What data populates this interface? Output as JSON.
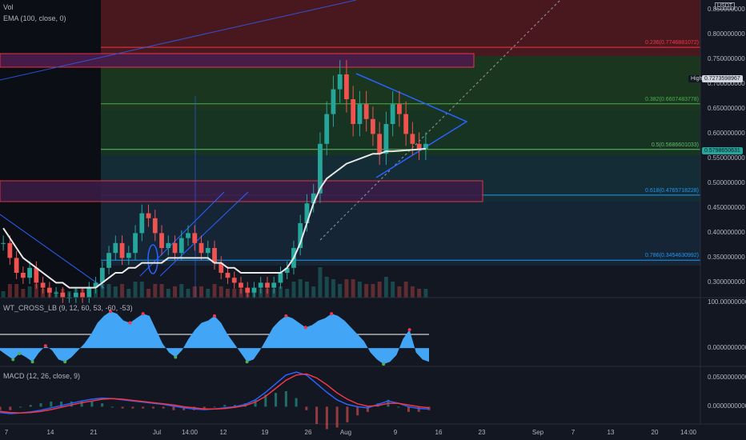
{
  "chart_data": [
    {
      "type": "candlestick",
      "pane": "price",
      "title": "",
      "indicators": [
        "Vol",
        "EMA (100, close, 0)"
      ],
      "y_axis_unit": "USDT",
      "ylim": [
        0.27,
        0.87
      ],
      "yticks": [
        "0.850000000",
        "0.800000000",
        "0.750000000",
        "0.700000000",
        "0.650000000",
        "0.600000000",
        "0.550000000",
        "0.500000000",
        "0.450000000",
        "0.400000000",
        "0.350000000",
        "0.300000000"
      ],
      "ytick_values": [
        0.85,
        0.8,
        0.75,
        0.7,
        0.65,
        0.6,
        0.55,
        0.5,
        0.45,
        0.4,
        0.35,
        0.3
      ],
      "xticks": [
        "7",
        "14",
        "21",
        "Jul",
        "14:00",
        "12",
        "19",
        "26",
        "Aug",
        "9",
        "16",
        "23",
        "Sep",
        "7",
        "13",
        "20",
        "14:00"
      ],
      "price_series": [
        0.38,
        0.35,
        0.32,
        0.31,
        0.33,
        0.3,
        0.29,
        0.28,
        0.28,
        0.27,
        0.27,
        0.28,
        0.27,
        0.29,
        0.3,
        0.33,
        0.36,
        0.38,
        0.35,
        0.36,
        0.4,
        0.44,
        0.43,
        0.4,
        0.37,
        0.38,
        0.36,
        0.39,
        0.4,
        0.38,
        0.36,
        0.37,
        0.34,
        0.32,
        0.31,
        0.3,
        0.29,
        0.28,
        0.29,
        0.3,
        0.29,
        0.3,
        0.32,
        0.33,
        0.37,
        0.42,
        0.46,
        0.48,
        0.58,
        0.64,
        0.69,
        0.72,
        0.67,
        0.62,
        0.66,
        0.63,
        0.6,
        0.56,
        0.62,
        0.66,
        0.64,
        0.6,
        0.58,
        0.57,
        0.58
      ],
      "ema_series": [
        0.41,
        0.39,
        0.37,
        0.35,
        0.34,
        0.33,
        0.32,
        0.31,
        0.3,
        0.3,
        0.29,
        0.29,
        0.29,
        0.29,
        0.29,
        0.3,
        0.31,
        0.32,
        0.32,
        0.33,
        0.33,
        0.34,
        0.34,
        0.34,
        0.34,
        0.35,
        0.35,
        0.35,
        0.35,
        0.35,
        0.35,
        0.35,
        0.34,
        0.34,
        0.33,
        0.33,
        0.32,
        0.32,
        0.32,
        0.32,
        0.32,
        0.32,
        0.32,
        0.33,
        0.35,
        0.38,
        0.42,
        0.46,
        0.49,
        0.51,
        0.52,
        0.53,
        0.54,
        0.545,
        0.55,
        0.555,
        0.56,
        0.56,
        0.565,
        0.565,
        0.566,
        0.567,
        0.568,
        0.569,
        0.57
      ],
      "price_labels": [
        {
          "label": "High",
          "value": "0.7273598967",
          "price": 0.7274
        },
        {
          "label": "",
          "value": "0.5798650631",
          "price": 0.5799
        }
      ],
      "fibonacci": [
        {
          "label": "0.236(0.7746881072)",
          "price": 0.7747
        },
        {
          "label": "0.382(0.6607483778)",
          "price": 0.6607
        },
        {
          "label": "0.5(0.5686601033)",
          "price": 0.5687
        },
        {
          "label": "0.618(0.4765718228)",
          "price": 0.4766
        },
        {
          "label": "0.786(0.3454630992)",
          "price": 0.3455
        }
      ],
      "zones": [
        {
          "name": "supply-zone",
          "low": 0.755,
          "high": 0.775
        },
        {
          "name": "demand-zone",
          "low": 0.478,
          "high": 0.515
        }
      ]
    },
    {
      "type": "area",
      "pane": "wt-cross",
      "title": "WT_CROSS_LB (9, 12, 60, 53, -60, -53)",
      "yticks": [
        "100.0000000000",
        "0.0000000000"
      ],
      "ytick_values": [
        100,
        0
      ],
      "ylim": [
        -40,
        110
      ],
      "values": [
        -5,
        -15,
        -25,
        -12,
        -20,
        -30,
        -10,
        5,
        -5,
        -25,
        -30,
        -20,
        -5,
        10,
        30,
        55,
        70,
        80,
        75,
        60,
        55,
        65,
        75,
        70,
        40,
        10,
        -10,
        -20,
        -5,
        20,
        40,
        55,
        60,
        70,
        55,
        30,
        10,
        -10,
        -30,
        -25,
        -5,
        20,
        45,
        60,
        70,
        65,
        55,
        45,
        50,
        60,
        65,
        75,
        70,
        60,
        45,
        30,
        15,
        -10,
        -25,
        -35,
        -30,
        -15,
        20,
        40,
        -10,
        -25,
        -30
      ]
    },
    {
      "type": "line",
      "pane": "macd",
      "title": "MACD (12, 26, close, 9)",
      "yticks": [
        "0.0500000000",
        "0.0000000000"
      ],
      "ytick_values": [
        0.05,
        0
      ],
      "ylim": [
        -0.03,
        0.07
      ],
      "series": [
        {
          "values": [
            -0.01,
            -0.012,
            -0.011,
            -0.009,
            -0.006,
            -0.002,
            0.002,
            0.006,
            0.01,
            0.013,
            0.015,
            0.014,
            0.012,
            0.01,
            0.008,
            0.006,
            0.004,
            0.001,
            -0.002,
            -0.004,
            -0.005,
            -0.004,
            -0.002,
            0.0,
            0.004,
            0.012,
            0.025,
            0.04,
            0.055,
            0.06,
            0.055,
            0.04,
            0.025,
            0.012,
            0.004,
            0.0,
            -0.002,
            0.004,
            0.01,
            0.006,
            0.0,
            -0.003,
            -0.004
          ],
          "color": "#2962ff"
        },
        {
          "values": [
            -0.008,
            -0.01,
            -0.011,
            -0.01,
            -0.008,
            -0.005,
            -0.001,
            0.003,
            0.007,
            0.01,
            0.013,
            0.014,
            0.013,
            0.011,
            0.009,
            0.007,
            0.005,
            0.003,
            0.0,
            -0.002,
            -0.004,
            -0.004,
            -0.003,
            -0.001,
            0.002,
            0.008,
            0.018,
            0.032,
            0.046,
            0.055,
            0.057,
            0.05,
            0.038,
            0.024,
            0.013,
            0.005,
            0.001,
            0.002,
            0.006,
            0.006,
            0.003,
            0.0,
            -0.002
          ],
          "color": "#f23645"
        }
      ]
    }
  ]
}
